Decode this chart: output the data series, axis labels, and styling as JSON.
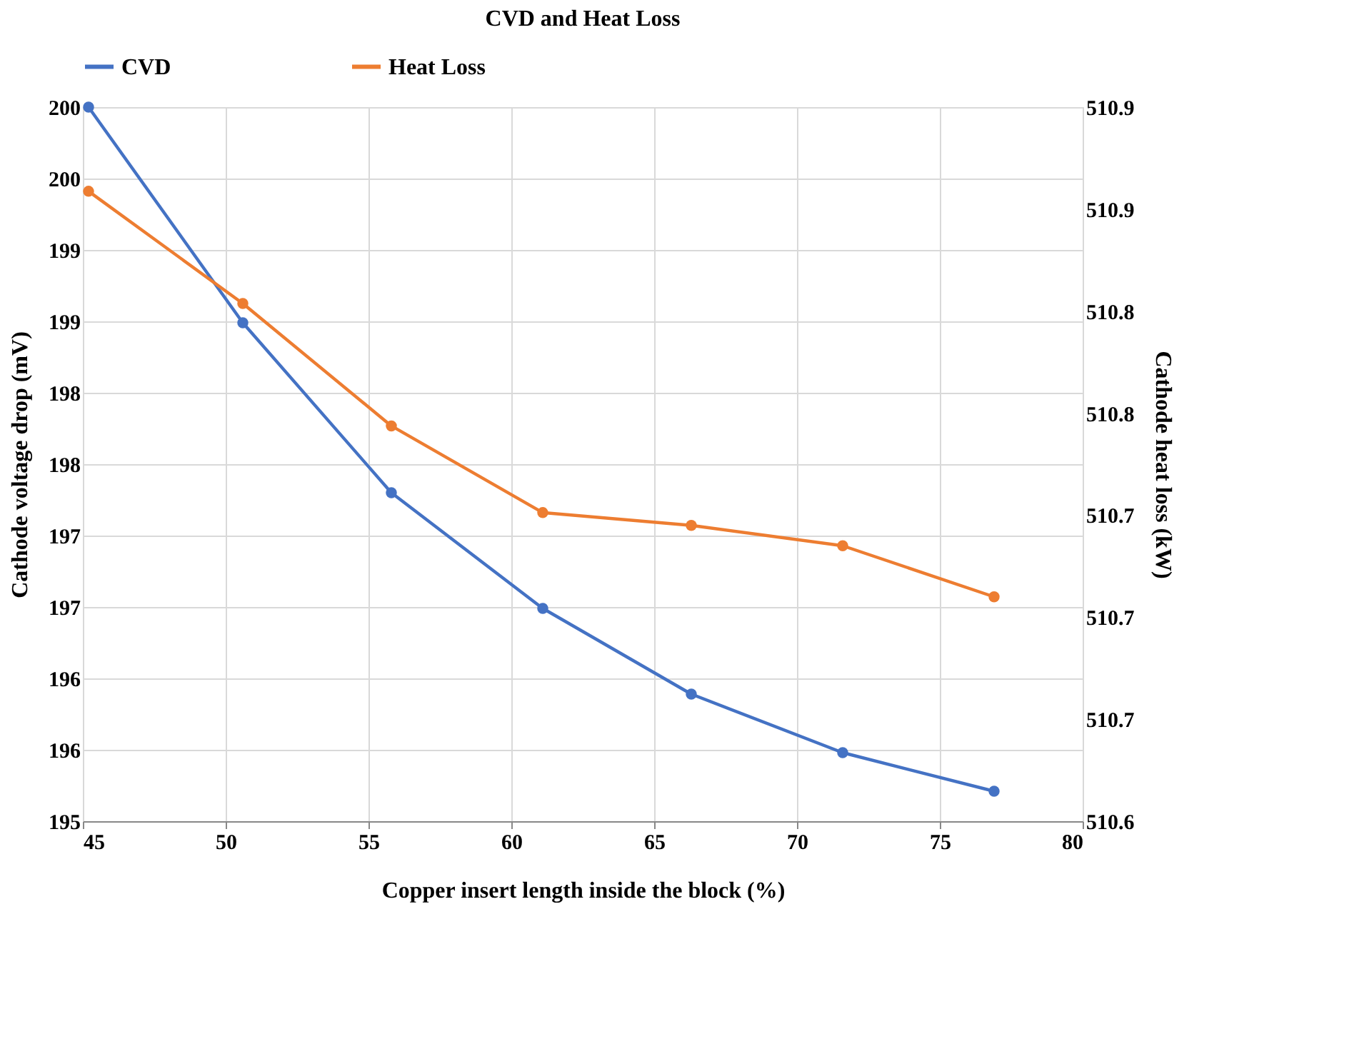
{
  "chart_data": {
    "type": "line",
    "title": "CVD and Heat Loss",
    "xlabel": "Copper insert length inside the block (%)",
    "ylabel": "Cathode voltage drop (mV)",
    "y2label": "Cathode heat loss (kW)",
    "x": [
      45.2,
      50.6,
      55.8,
      61.1,
      66.3,
      71.6,
      76.9
    ],
    "series": [
      {
        "name": "CVD",
        "color": "#4472c4",
        "values": [
          200.0,
          198.49,
          197.3,
          196.49,
          195.89,
          195.48,
          195.21
        ]
      },
      {
        "name": "Heat Loss",
        "color": "#ed7d31",
        "axis": "y2",
        "values": [
          510.867,
          510.823,
          510.775,
          510.741,
          510.736,
          510.728,
          510.708
        ]
      }
    ],
    "xlim": [
      45,
      80
    ],
    "xticks": [
      45,
      50,
      55,
      60,
      65,
      70,
      75,
      80
    ],
    "ylim": [
      195,
      200
    ],
    "yticks": [
      195,
      {
        "value": 195.5,
        "label": "196"
      },
      196,
      {
        "value": 196.5,
        "label": "197"
      },
      197,
      {
        "value": 197.5,
        "label": "198"
      },
      198,
      {
        "value": 198.5,
        "label": "199"
      },
      199,
      {
        "value": 199.5,
        "label": "200"
      },
      200
    ],
    "y2lim": [
      510.62,
      510.9
    ],
    "y2ticks": [
      {
        "value": 510.62,
        "label": "510.6"
      },
      {
        "value": 510.66,
        "label": "510.7"
      },
      {
        "value": 510.7,
        "label": "510.7"
      },
      {
        "value": 510.74,
        "label": "510.7"
      },
      {
        "value": 510.78,
        "label": "510.8"
      },
      {
        "value": 510.82,
        "label": "510.8"
      },
      {
        "value": 510.86,
        "label": "510.9"
      },
      {
        "value": 510.9,
        "label": "510.9"
      }
    ],
    "grid": true,
    "legend": "top",
    "marker": "circle",
    "line_style": "solid"
  }
}
